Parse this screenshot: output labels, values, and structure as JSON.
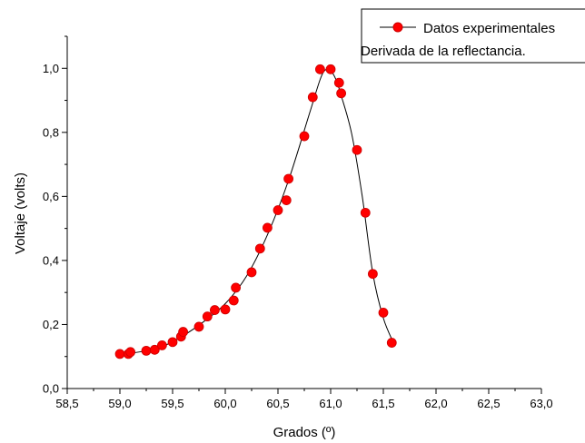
{
  "chart_data": {
    "type": "scatter",
    "xlabel": "Grados (º)",
    "ylabel": "Voltaje (volts)",
    "xlim": [
      58.5,
      63.0
    ],
    "ylim": [
      0.0,
      1.1
    ],
    "x_ticks": [
      58.5,
      59.0,
      59.5,
      60.0,
      60.5,
      61.0,
      61.5,
      62.0,
      62.5,
      63.0
    ],
    "x_tick_labels": [
      "58,5",
      "59,0",
      "59,5",
      "60,0",
      "60,5",
      "61,0",
      "61,5",
      "62,0",
      "62,5",
      "63,0"
    ],
    "y_ticks": [
      0.0,
      0.2,
      0.4,
      0.6,
      0.8,
      1.0
    ],
    "y_tick_labels": [
      "0,0",
      "0,2",
      "0,4",
      "0,6",
      "0,8",
      "1,0"
    ],
    "grid": false,
    "legend_position": "top-right",
    "series": [
      {
        "name": "Datos experimentales",
        "marker_color": "#ff0000",
        "marker_edge": "#cc0000",
        "points": [
          [
            59.0,
            0.108
          ],
          [
            59.08,
            0.108
          ],
          [
            59.1,
            0.114
          ],
          [
            59.25,
            0.118
          ],
          [
            59.33,
            0.121
          ],
          [
            59.4,
            0.135
          ],
          [
            59.5,
            0.145
          ],
          [
            59.58,
            0.162
          ],
          [
            59.6,
            0.177
          ],
          [
            59.75,
            0.193
          ],
          [
            59.83,
            0.225
          ],
          [
            59.9,
            0.245
          ],
          [
            60.0,
            0.247
          ],
          [
            60.08,
            0.275
          ],
          [
            60.1,
            0.315
          ],
          [
            60.25,
            0.363
          ],
          [
            60.33,
            0.437
          ],
          [
            60.4,
            0.502
          ],
          [
            60.5,
            0.557
          ],
          [
            60.58,
            0.588
          ],
          [
            60.6,
            0.655
          ],
          [
            60.75,
            0.788
          ],
          [
            60.83,
            0.91
          ],
          [
            60.9,
            0.997
          ],
          [
            61.0,
            0.997
          ],
          [
            61.08,
            0.955
          ],
          [
            61.1,
            0.922
          ],
          [
            61.25,
            0.745
          ],
          [
            61.33,
            0.549
          ],
          [
            61.4,
            0.358
          ],
          [
            61.5,
            0.237
          ],
          [
            61.58,
            0.143
          ]
        ]
      },
      {
        "name": "Derivada de la reflectancia.",
        "line_color": "#000000",
        "x": [
          59.0,
          59.2,
          59.4,
          59.6,
          59.8,
          60.0,
          60.2,
          60.4,
          60.6,
          60.8,
          60.9,
          60.95,
          61.0,
          61.05,
          61.1,
          61.2,
          61.3,
          61.4,
          61.5,
          61.6
        ],
        "y": [
          0.107,
          0.115,
          0.131,
          0.165,
          0.21,
          0.265,
          0.35,
          0.48,
          0.65,
          0.86,
          0.965,
          0.995,
          0.993,
          0.965,
          0.915,
          0.795,
          0.6,
          0.36,
          0.22,
          0.14
        ]
      }
    ]
  }
}
